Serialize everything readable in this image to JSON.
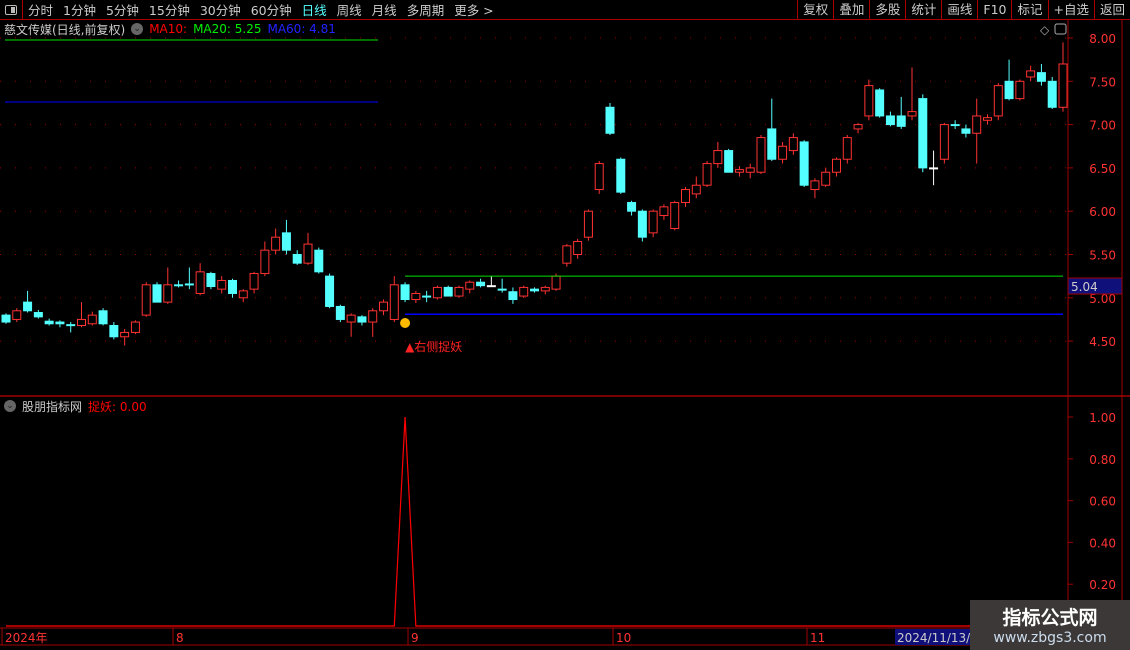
{
  "toolbar": {
    "periods": [
      "分时",
      "1分钟",
      "5分钟",
      "15分钟",
      "30分钟",
      "60分钟",
      "日线",
      "周线",
      "月线",
      "多周期",
      "更多 >"
    ],
    "active": "日线",
    "right": [
      "复权",
      "叠加",
      "多股",
      "统计",
      "画线",
      "F10",
      "标记",
      "+自选",
      "返回"
    ]
  },
  "main": {
    "title": "慈文传媒(日线,前复权)",
    "ma10": "MA10:",
    "ma20": "MA20: 5.25",
    "ma60": "MA60: 4.81",
    "price_ticks": [
      "8.00",
      "7.50",
      "7.00",
      "6.50",
      "6.00",
      "5.50",
      "5.00",
      "4.50"
    ],
    "price_tick_values": [
      8,
      7.5,
      7,
      6.5,
      6,
      5.5,
      5,
      4.5
    ],
    "cursor_price": "5.04",
    "signal_label": "▲右侧捉妖",
    "ma20_value": 5.25,
    "ma60_value": 4.81
  },
  "sub": {
    "title": "股朋指标网",
    "indicator": "捉妖: 0.00",
    "ticks": [
      "1.00",
      "0.80",
      "0.60",
      "0.40",
      "0.20"
    ],
    "tick_values": [
      1,
      0.8,
      0.6,
      0.4,
      0.2
    ]
  },
  "date_axis": {
    "labels": [
      "2024年",
      "8",
      "9",
      "10",
      "11"
    ],
    "cursor_date": "2024/11/13/三"
  },
  "watermark": {
    "title": "指标公式网",
    "url": "www.zbgs3.com"
  },
  "colors": {
    "up": "#ff3232",
    "down": "#54ffff",
    "ma10": "#ff0000",
    "ma20": "#00e000",
    "ma60": "#0000ff",
    "grid": "#a00000"
  },
  "chart_data": {
    "type": "candlestick",
    "signal_index": 37,
    "ohlc": [
      [
        4.8,
        4.82,
        4.7,
        4.72
      ],
      [
        4.75,
        4.88,
        4.72,
        4.85
      ],
      [
        4.95,
        5.08,
        4.83,
        4.85
      ],
      [
        4.83,
        4.86,
        4.76,
        4.78
      ],
      [
        4.73,
        4.76,
        4.68,
        4.7
      ],
      [
        4.72,
        4.74,
        4.66,
        4.7
      ],
      [
        4.69,
        4.72,
        4.6,
        4.68
      ],
      [
        4.68,
        4.95,
        4.66,
        4.75
      ],
      [
        4.7,
        4.84,
        4.68,
        4.8
      ],
      [
        4.85,
        4.88,
        4.68,
        4.7
      ],
      [
        4.68,
        4.72,
        4.52,
        4.55
      ],
      [
        4.55,
        4.64,
        4.45,
        4.6
      ],
      [
        4.6,
        4.74,
        4.58,
        4.72
      ],
      [
        4.8,
        5.18,
        4.78,
        5.15
      ],
      [
        5.15,
        5.18,
        4.95,
        4.95
      ],
      [
        4.95,
        5.35,
        4.93,
        5.15
      ],
      [
        5.15,
        5.2,
        5.12,
        5.15
      ],
      [
        5.16,
        5.35,
        5.1,
        5.15
      ],
      [
        5.05,
        5.4,
        5.03,
        5.3
      ],
      [
        5.28,
        5.3,
        5.1,
        5.13
      ],
      [
        5.1,
        5.25,
        5.05,
        5.2
      ],
      [
        5.2,
        5.22,
        5.0,
        5.05
      ],
      [
        5.0,
        5.1,
        4.95,
        5.08
      ],
      [
        5.1,
        5.3,
        5.05,
        5.28
      ],
      [
        5.28,
        5.65,
        5.25,
        5.55
      ],
      [
        5.55,
        5.8,
        5.5,
        5.7
      ],
      [
        5.75,
        5.9,
        5.5,
        5.55
      ],
      [
        5.5,
        5.55,
        5.38,
        5.4
      ],
      [
        5.4,
        5.75,
        5.38,
        5.62
      ],
      [
        5.55,
        5.58,
        5.28,
        5.3
      ],
      [
        5.25,
        5.28,
        4.88,
        4.9
      ],
      [
        4.9,
        4.92,
        4.72,
        4.75
      ],
      [
        4.72,
        4.82,
        4.55,
        4.8
      ],
      [
        4.78,
        4.8,
        4.68,
        4.72
      ],
      [
        4.72,
        4.88,
        4.55,
        4.85
      ],
      [
        4.85,
        4.98,
        4.8,
        4.95
      ],
      [
        4.75,
        5.25,
        4.72,
        5.15
      ],
      [
        5.15,
        5.18,
        4.95,
        4.98
      ],
      [
        4.98,
        5.08,
        4.94,
        5.05
      ],
      [
        5.02,
        5.08,
        4.95,
        5.02
      ],
      [
        5.0,
        5.14,
        4.98,
        5.12
      ],
      [
        5.12,
        5.14,
        5.02,
        5.02
      ],
      [
        5.02,
        5.14,
        5.0,
        5.12
      ],
      [
        5.1,
        5.2,
        5.05,
        5.18
      ],
      [
        5.18,
        5.22,
        5.12,
        5.14
      ],
      [
        5.14,
        5.25,
        5.14,
        5.14
      ],
      [
        5.1,
        5.22,
        5.06,
        5.1
      ],
      [
        5.07,
        5.12,
        4.93,
        4.98
      ],
      [
        5.02,
        5.14,
        5.0,
        5.12
      ],
      [
        5.1,
        5.12,
        5.06,
        5.08
      ],
      [
        5.08,
        5.14,
        5.04,
        5.12
      ],
      [
        5.1,
        5.28,
        5.08,
        5.25
      ],
      [
        5.4,
        5.62,
        5.36,
        5.6
      ],
      [
        5.5,
        5.68,
        5.45,
        5.65
      ],
      [
        5.7,
        6.02,
        5.66,
        6.0
      ],
      [
        6.25,
        6.58,
        6.2,
        6.55
      ],
      [
        7.2,
        7.25,
        6.88,
        6.9
      ],
      [
        6.6,
        6.62,
        6.2,
        6.22
      ],
      [
        6.1,
        6.12,
        5.95,
        6.0
      ],
      [
        6.0,
        6.02,
        5.65,
        5.7
      ],
      [
        5.75,
        6.02,
        5.7,
        6.0
      ],
      [
        5.95,
        6.08,
        5.9,
        6.05
      ],
      [
        5.8,
        6.12,
        5.78,
        6.1
      ],
      [
        6.1,
        6.28,
        6.05,
        6.25
      ],
      [
        6.2,
        6.4,
        6.15,
        6.3
      ],
      [
        6.3,
        6.58,
        6.28,
        6.55
      ],
      [
        6.55,
        6.8,
        6.5,
        6.7
      ],
      [
        6.7,
        6.72,
        6.45,
        6.45
      ],
      [
        6.45,
        6.52,
        6.4,
        6.48
      ],
      [
        6.45,
        6.55,
        6.38,
        6.5
      ],
      [
        6.45,
        6.88,
        6.43,
        6.85
      ],
      [
        6.95,
        7.3,
        6.58,
        6.6
      ],
      [
        6.6,
        6.8,
        6.55,
        6.75
      ],
      [
        6.7,
        6.9,
        6.65,
        6.85
      ],
      [
        6.8,
        6.82,
        6.28,
        6.3
      ],
      [
        6.25,
        6.38,
        6.15,
        6.35
      ],
      [
        6.3,
        6.5,
        6.28,
        6.45
      ],
      [
        6.45,
        6.62,
        6.4,
        6.6
      ],
      [
        6.6,
        6.88,
        6.55,
        6.85
      ],
      [
        6.95,
        7.02,
        6.9,
        7.0
      ],
      [
        7.1,
        7.52,
        7.05,
        7.45
      ],
      [
        7.4,
        7.42,
        7.08,
        7.1
      ],
      [
        7.1,
        7.15,
        6.98,
        7.0
      ],
      [
        7.1,
        7.32,
        6.95,
        6.98
      ],
      [
        7.1,
        7.66,
        7.05,
        7.15
      ],
      [
        7.3,
        7.35,
        6.45,
        6.5
      ],
      [
        6.5,
        6.7,
        6.3,
        6.5
      ],
      [
        6.6,
        7.02,
        6.55,
        7.0
      ],
      [
        7.0,
        7.05,
        6.95,
        7.0
      ],
      [
        6.95,
        7.0,
        6.85,
        6.9
      ],
      [
        6.9,
        7.3,
        6.55,
        7.1
      ],
      [
        7.05,
        7.12,
        7.0,
        7.08
      ],
      [
        7.1,
        7.48,
        7.05,
        7.45
      ],
      [
        7.5,
        7.75,
        7.28,
        7.3
      ],
      [
        7.3,
        7.52,
        7.28,
        7.5
      ],
      [
        7.55,
        7.68,
        7.5,
        7.62
      ],
      [
        7.6,
        7.7,
        7.45,
        7.5
      ],
      [
        7.5,
        7.55,
        7.18,
        7.2
      ],
      [
        7.2,
        7.95,
        7.15,
        7.7
      ]
    ],
    "indicator": "0 except signal_index = 1.00",
    "indicator_ylim": [
      0,
      1.05
    ],
    "price_ylim": [
      4.12,
      8.18
    ]
  }
}
